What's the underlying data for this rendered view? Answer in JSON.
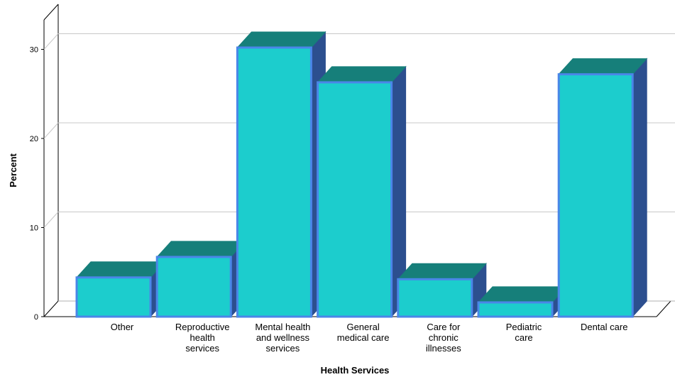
{
  "chart_data": {
    "type": "bar",
    "style": "3d",
    "xlabel": "Health Services",
    "ylabel": "Percent",
    "ylim": [
      0,
      33
    ],
    "yticks": [
      0,
      10,
      20,
      30
    ],
    "grid": true,
    "categories": [
      [
        "Other"
      ],
      [
        "Reproductive",
        "health",
        "services"
      ],
      [
        "Mental health",
        "and wellness",
        "services"
      ],
      [
        "General",
        "medical care"
      ],
      [
        "Care for",
        "chronic",
        "illnesses"
      ],
      [
        "Pediatric",
        "care"
      ],
      [
        "Dental care"
      ]
    ],
    "values": [
      4.4,
      6.7,
      30.2,
      26.3,
      4.2,
      1.6,
      27.2
    ],
    "colors": {
      "front": "#1ccdcd",
      "top": "#167f7a",
      "side": "#2c4f8f",
      "outline": "#4a86e8"
    }
  }
}
